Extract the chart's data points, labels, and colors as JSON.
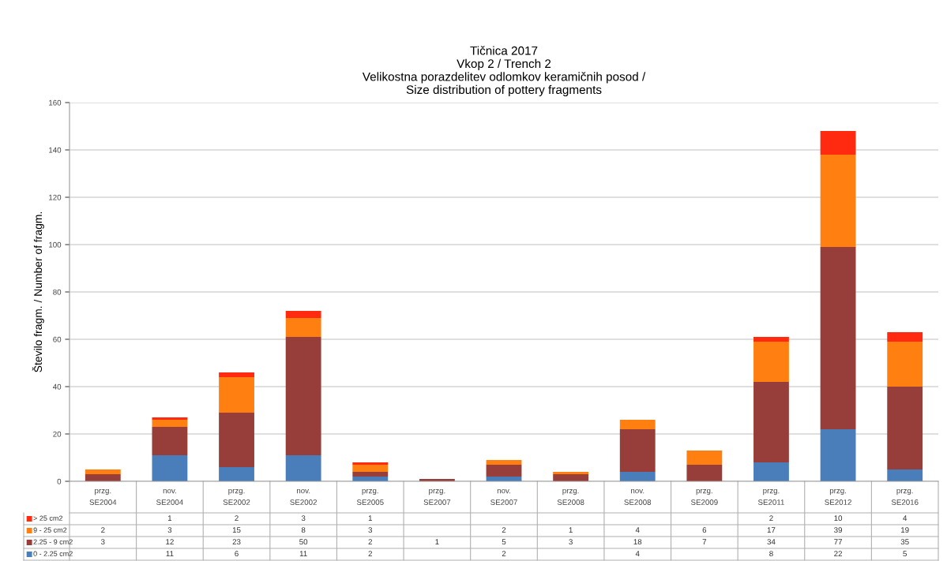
{
  "chart_data": {
    "type": "bar",
    "stacked": true,
    "title": "Tičnica 2017\nVkop 2 / Trench 2\nVelikostna porazdelitev odlomkov keramičnih posod /\nSize distribution of pottery fragments",
    "ylabel": "Število fragm. / Number of fragm.",
    "categories": [
      "przg.\nSE2004",
      "nov.\nSE2004",
      "przg.\nSE2002",
      "nov.\nSE2002",
      "przg.\nSE2005",
      "przg.\nSE2007",
      "nov.\nSE2007",
      "przg.\nSE2008",
      "nov.\nSE2008",
      "przg.\nSE2009",
      "przg.\nSE2011",
      "przg.\nSE2012",
      "przg.\nSE2016"
    ],
    "series": [
      {
        "name": "0 - 2.25 cm2",
        "color": "#4a7ebb",
        "values": [
          null,
          11,
          6,
          11,
          2,
          null,
          2,
          null,
          4,
          null,
          8,
          22,
          5
        ]
      },
      {
        "name": "2.25 - 9 cm2",
        "color": "#983e3a",
        "values": [
          3,
          12,
          23,
          50,
          2,
          1,
          5,
          3,
          18,
          7,
          34,
          77,
          35
        ]
      },
      {
        "name": "9 - 25 cm2",
        "color": "#ff8010",
        "values": [
          2,
          3,
          15,
          8,
          3,
          null,
          2,
          1,
          4,
          6,
          17,
          39,
          19
        ]
      },
      {
        "name": "> 25 cm2",
        "color": "#ff2a10",
        "values": [
          null,
          1,
          2,
          3,
          1,
          null,
          null,
          null,
          null,
          null,
          2,
          10,
          4
        ]
      }
    ],
    "ylim": [
      0,
      160
    ],
    "yticks": [
      0,
      20,
      40,
      60,
      80,
      100,
      120,
      140,
      160
    ],
    "grid": "y",
    "data_labels": true,
    "legend": "bottom"
  }
}
